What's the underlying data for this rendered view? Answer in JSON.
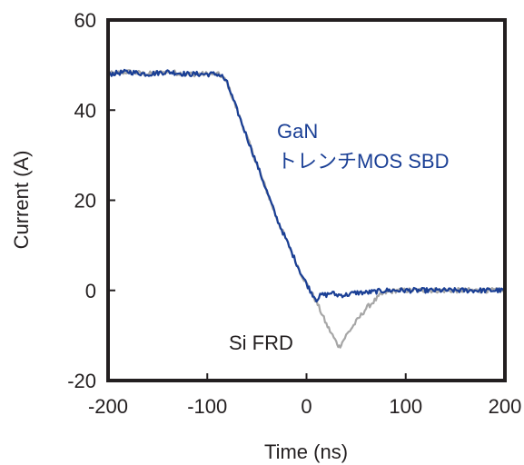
{
  "chart_data": {
    "type": "line",
    "title": "",
    "xlabel": "Time (ns)",
    "ylabel": "Current (A)",
    "xlim": [
      -200,
      200
    ],
    "ylim": [
      -20,
      60
    ],
    "xticks": [
      -200,
      -100,
      0,
      100,
      200
    ],
    "yticks": [
      -20,
      0,
      20,
      40,
      60
    ],
    "xtick_labels": [
      "-200",
      "-100",
      "0",
      "100",
      "200"
    ],
    "ytick_labels": [
      "-20",
      "0",
      "20",
      "40",
      "60"
    ],
    "grid": false,
    "legend": "none",
    "series": [
      {
        "color": "#a6a6a6",
        "x": [
          -200,
          -180,
          -160,
          -140,
          -120,
          -100,
          -90,
          -85,
          -80,
          -75,
          -70,
          -65,
          -60,
          -55,
          -50,
          -45,
          -40,
          -35,
          -30,
          -25,
          -20,
          -15,
          -10,
          -5,
          0,
          5,
          10,
          15,
          20,
          25,
          30,
          33,
          36,
          40,
          45,
          50,
          55,
          60,
          65,
          70,
          75,
          80,
          90,
          100,
          120,
          140,
          160,
          180,
          200
        ],
        "y": [
          48,
          48.5,
          48,
          48.5,
          48,
          48,
          48,
          47.5,
          46,
          43,
          40,
          37,
          34,
          31,
          28,
          25,
          22,
          19,
          16,
          13.5,
          11,
          8.5,
          6,
          3.5,
          1.5,
          -0.5,
          -2.5,
          -5,
          -7.5,
          -9.5,
          -11.5,
          -12.5,
          -11.5,
          -10,
          -8.5,
          -7,
          -5.5,
          -4,
          -3,
          -2,
          -1,
          -0.5,
          0,
          0,
          0,
          0,
          0,
          0,
          0
        ]
      },
      {
        "color": "#1a3f95",
        "x": [
          -200,
          -180,
          -160,
          -140,
          -120,
          -100,
          -90,
          -85,
          -80,
          -75,
          -70,
          -65,
          -60,
          -55,
          -50,
          -45,
          -40,
          -35,
          -30,
          -25,
          -20,
          -15,
          -10,
          -5,
          0,
          5,
          10,
          15,
          20,
          25,
          30,
          40,
          50,
          60,
          80,
          100,
          120,
          140,
          160,
          180,
          200
        ],
        "y": [
          48,
          48.5,
          48,
          48.5,
          48,
          48,
          48,
          47.5,
          46,
          43,
          40,
          37,
          34,
          31,
          28,
          25,
          22,
          19,
          16,
          13.5,
          11,
          8.5,
          6,
          3.5,
          1.5,
          -0.5,
          -2,
          -1,
          -1,
          -0.5,
          -1,
          -1,
          -0.5,
          -0.5,
          0,
          0,
          0,
          0,
          0,
          0,
          0
        ]
      }
    ],
    "annotations": [
      {
        "lines": [
          "GaN",
          "トレンチMOS SBD"
        ],
        "color": "#1a3f95"
      },
      {
        "lines": [
          "Si FRD"
        ],
        "color": "#231f20"
      }
    ]
  }
}
